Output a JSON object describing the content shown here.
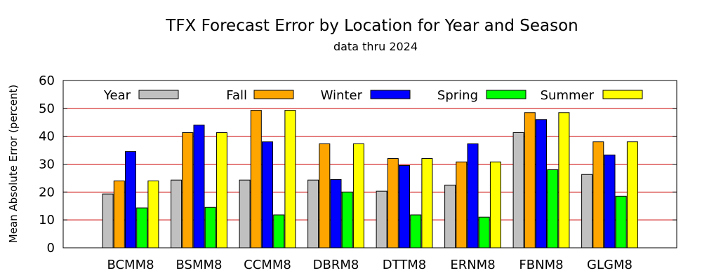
{
  "chart_data": {
    "type": "bar",
    "title": "TFX Forecast Error by Location for Year and Season",
    "subtitle": "data thru 2024",
    "xlabel": "",
    "ylabel": "Mean Absolute Error (percent)",
    "ylim": [
      0,
      60
    ],
    "yticks": [
      "0",
      "10",
      "20",
      "30",
      "40",
      "50",
      "60"
    ],
    "grid": "horizontal red lines at 10-unit intervals",
    "legend_position": "top, single row inside plot",
    "categories": [
      "BCMM8",
      "BSMM8",
      "CCMM8",
      "DBRM8",
      "DTTM8",
      "ERNM8",
      "FBNM8",
      "GLGM8"
    ],
    "series": [
      {
        "name": "Year",
        "color": "#c0c0c0",
        "values": [
          19.3,
          24.3,
          24.3,
          24.3,
          20.3,
          22.5,
          41.3,
          26.3
        ]
      },
      {
        "name": "Fall",
        "color": "#ffa500",
        "values": [
          24.0,
          41.3,
          49.3,
          37.3,
          32.0,
          30.8,
          48.5,
          38.0
        ]
      },
      {
        "name": "Winter",
        "color": "#0000ff",
        "values": [
          34.5,
          44.0,
          38.0,
          24.5,
          29.5,
          37.3,
          46.0,
          33.3
        ]
      },
      {
        "name": "Spring",
        "color": "#00ff00",
        "values": [
          14.3,
          14.5,
          11.8,
          20.0,
          11.8,
          11.0,
          28.0,
          18.5
        ]
      },
      {
        "name": "Summer",
        "color": "#ffff00",
        "values": [
          24.0,
          41.3,
          49.3,
          37.3,
          32.0,
          30.8,
          48.5,
          38.0
        ]
      }
    ]
  }
}
